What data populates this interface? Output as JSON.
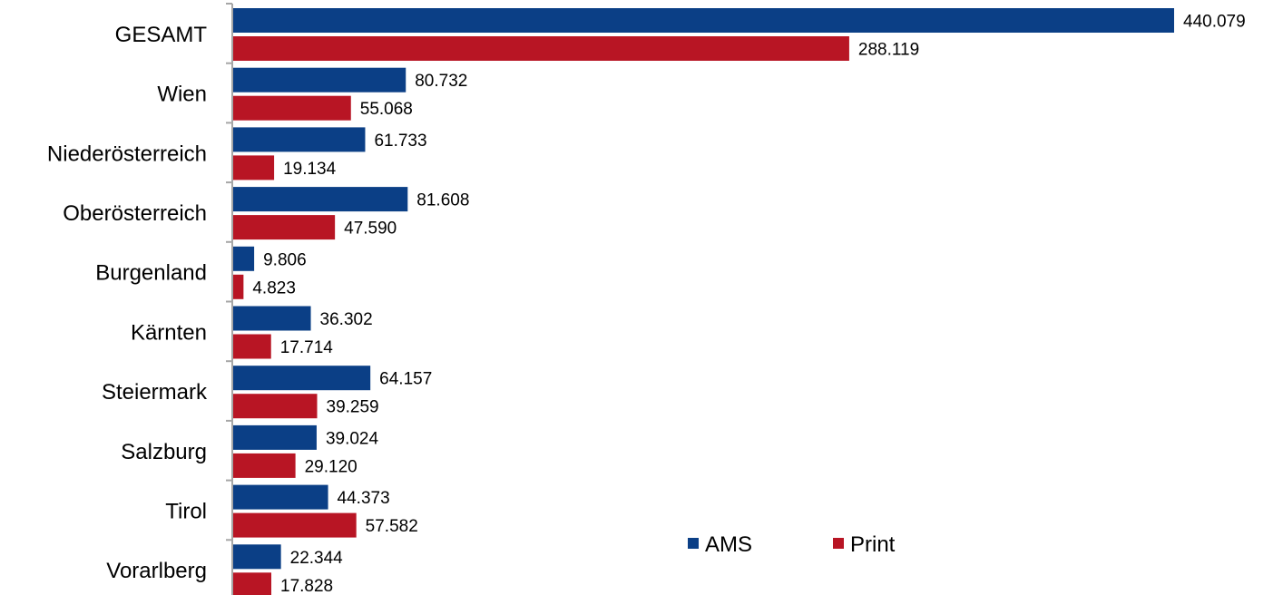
{
  "chart_data": {
    "type": "bar",
    "orientation": "horizontal",
    "categories": [
      "GESAMT",
      "Wien",
      "Niederösterreich",
      "Oberösterreich",
      "Burgenland",
      "Kärnten",
      "Steiermark",
      "Salzburg",
      "Tirol",
      "Vorarlberg"
    ],
    "series": [
      {
        "name": "AMS",
        "color": "#0b3f86",
        "values": [
          440079,
          80732,
          61733,
          81608,
          9806,
          36302,
          64157,
          39024,
          44373,
          22344
        ],
        "labels": [
          "440.079",
          "80.732",
          "61.733",
          "81.608",
          "9.806",
          "36.302",
          "64.157",
          "39.024",
          "44.373",
          "22.344"
        ]
      },
      {
        "name": "Print",
        "color": "#b81524",
        "values": [
          288119,
          55068,
          19134,
          47590,
          4823,
          17714,
          39259,
          29120,
          57582,
          17828
        ],
        "labels": [
          "288.119",
          "55.068",
          "19.134",
          "47.590",
          "4.823",
          "17.714",
          "39.259",
          "29.120",
          "57.582",
          "17.828"
        ]
      }
    ],
    "xlim": [
      0,
      440079
    ],
    "grid": false,
    "legend_position": "bottom-right"
  }
}
